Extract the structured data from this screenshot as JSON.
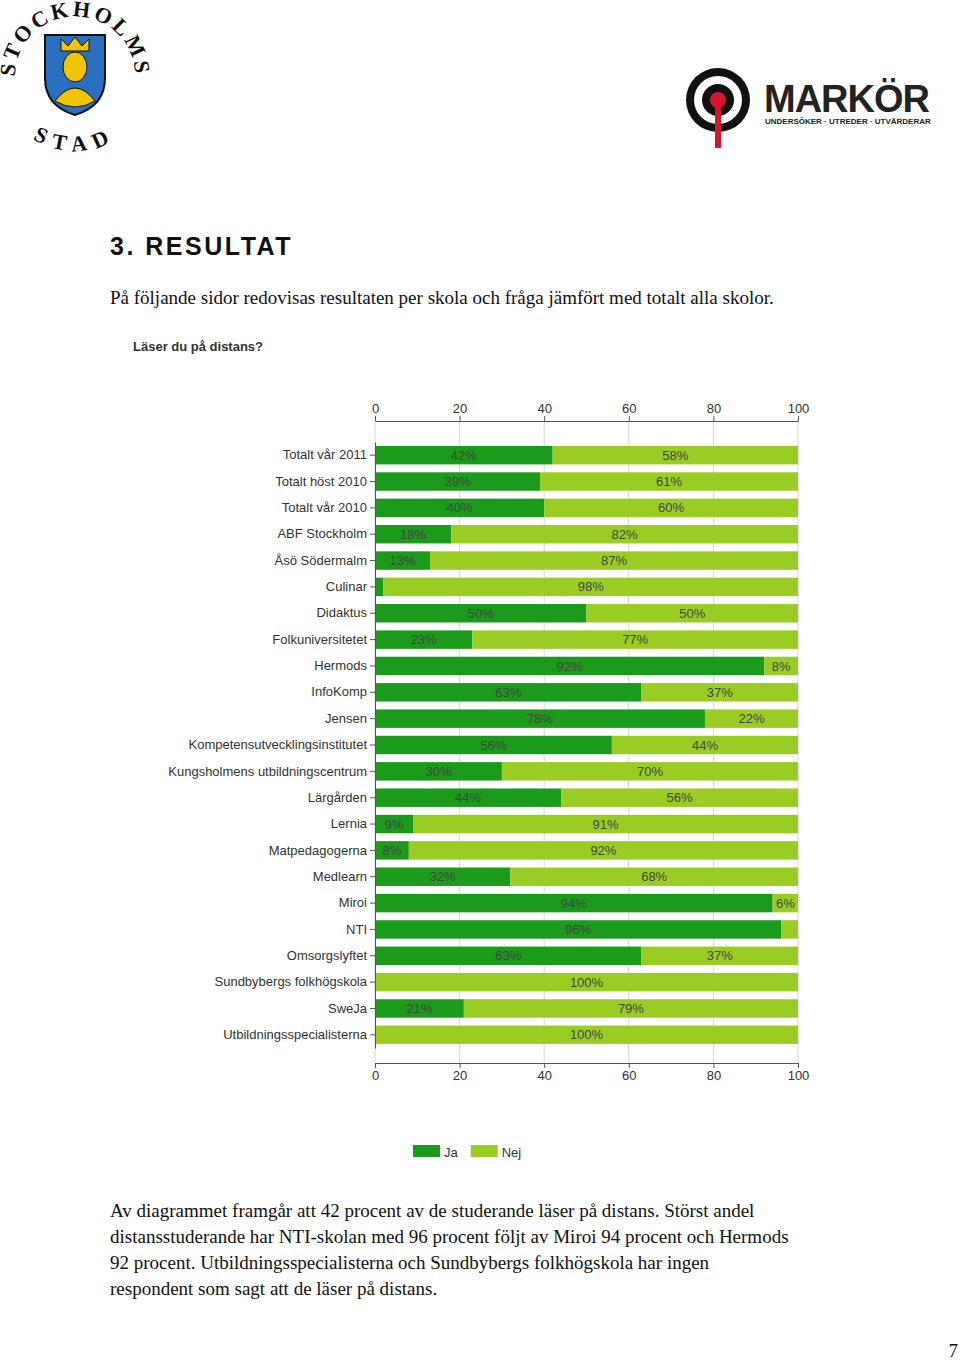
{
  "header": {
    "city_logo": [
      "STOCKHOLMS",
      "STAD"
    ],
    "brand": "MARKÖR",
    "brand_tagline": "UNDERSÖKER · UTREDER · UTVÄRDERAR"
  },
  "heading": "3. RESULTAT",
  "intro": "På följande sidor redovisas resultaten per skola och fråga jämfört med totalt alla skolor.",
  "chart_data": {
    "type": "bar",
    "title": "Läser du på distans?",
    "orientation": "horizontal",
    "stacked": true,
    "data_labels": true,
    "grid": true,
    "legend": "bottom",
    "xlim": [
      0,
      100
    ],
    "xticks": [
      0,
      20,
      40,
      60,
      80,
      100
    ],
    "categories": [
      "Totalt vår 2011",
      "Totalt höst 2010",
      "Totalt vår 2010",
      "ABF Stockholm",
      "Åsö Södermalm",
      "Culinar",
      "Didaktus",
      "Folkuniversitetet",
      "Hermods",
      "InfoKomp",
      "Jensen",
      "Kompetensutvecklingsinstitutet",
      "Kungsholmens utbildningscentrum",
      "Lärgården",
      "Lernia",
      "Matpedagogerna",
      "Medlearn",
      "Miroi",
      "NTI",
      "Omsorgslyftet",
      "Sundbybergs folkhögskola",
      "SweJa",
      "Utbildningsspecialisterna"
    ],
    "series": [
      {
        "name": "Ja",
        "color": "#1b9a1b",
        "values": [
          42,
          39,
          40,
          18,
          13,
          2,
          50,
          23,
          92,
          63,
          78,
          56,
          30,
          44,
          9,
          8,
          32,
          94,
          96,
          63,
          0,
          21,
          0
        ],
        "value_labels": [
          "42%",
          "39%",
          "40%",
          "18%",
          "13%",
          null,
          "50%",
          "23%",
          "92%",
          "63%",
          "78%",
          "56%",
          "30%",
          "44%",
          "9%",
          "8%",
          "32%",
          "94%",
          "96%",
          "63%",
          null,
          "21%",
          null
        ]
      },
      {
        "name": "Nej",
        "color": "#9acd24",
        "values": [
          58,
          61,
          60,
          82,
          87,
          98,
          50,
          77,
          8,
          37,
          22,
          44,
          70,
          56,
          91,
          92,
          68,
          6,
          4,
          37,
          100,
          79,
          100
        ],
        "value_labels": [
          "58%",
          "61%",
          "60%",
          "82%",
          "87%",
          "98%",
          "50%",
          "77%",
          "8%",
          "37%",
          "22%",
          "44%",
          "70%",
          "56%",
          "91%",
          "92%",
          "68%",
          "6%",
          null,
          "37%",
          "100%",
          "79%",
          "100%"
        ]
      }
    ]
  },
  "body_lines": [
    "Av diagrammet framgår att 42 procent av de studerande läser på distans. Störst andel",
    "distansstuderande har NTI-skolan med 96 procent följt av Miroi 94 procent och Hermods",
    "92 procent. Utbildningsspecialisterna och Sundbybergs folkhögskola har ingen",
    "respondent som sagt att de läser på distans."
  ],
  "page_number": 7
}
